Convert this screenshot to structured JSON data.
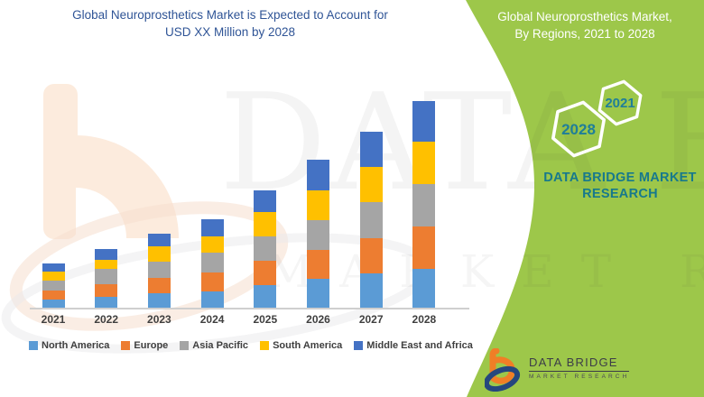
{
  "left_panel": {
    "title_line1": "Global Neuroprosthetics Market is Expected to Account for",
    "title_line2": "USD XX Million by 2028"
  },
  "right_panel": {
    "title_line1": "Global Neuroprosthetics Market,",
    "title_line2": "By Regions, 2021 to 2028",
    "hexagons": [
      {
        "label": "2028"
      },
      {
        "label": "2021"
      }
    ],
    "brand_line1": "DATA BRIDGE MARKET",
    "brand_line2": "RESEARCH",
    "colors": {
      "background": "#9DC74A",
      "hex_border": "#FFFFFF",
      "brand_text": "#17798C",
      "hex_label_text": "#1F7E99"
    }
  },
  "watermark": {
    "line1": "DATA BRIDGE",
    "line2": "MARKET RESEARCH"
  },
  "logo": {
    "name": "DATA BRIDGE",
    "subtitle": "MARKET RESEARCH",
    "colors": {
      "orange": "#F07E26",
      "navy": "#25477E",
      "text": "#3C3C48"
    }
  },
  "chart_data": {
    "type": "bar",
    "stacked": true,
    "title": "Global Neuroprosthetics Market, By Regions, 2021 to 2028",
    "xlabel": "",
    "ylabel": "",
    "unit_label": "USD XX Million",
    "value_note": "Actual values not disclosed (XX); series values are relative units estimated from bar heights",
    "grid": false,
    "legend_position": "bottom",
    "categories": [
      "2021",
      "2022",
      "2023",
      "2024",
      "2025",
      "2026",
      "2027",
      "2028"
    ],
    "series": [
      {
        "name": "North America",
        "color": "#5B9BD5",
        "values": [
          10,
          13,
          17,
          19,
          26,
          33,
          39,
          44
        ]
      },
      {
        "name": "Europe",
        "color": "#ED7D31",
        "values": [
          10,
          14,
          17,
          21,
          27,
          32,
          39,
          47
        ]
      },
      {
        "name": "Asia Pacific",
        "color": "#A5A5A5",
        "values": [
          11,
          17,
          18,
          22,
          27,
          33,
          40,
          47
        ]
      },
      {
        "name": "South America",
        "color": "#FFC000",
        "values": [
          10,
          10,
          17,
          18,
          27,
          33,
          39,
          47
        ]
      },
      {
        "name": "Middle East and Africa",
        "color": "#4472C4",
        "values": [
          9,
          12,
          14,
          19,
          24,
          34,
          39,
          45
        ]
      }
    ],
    "totals": [
      50,
      66,
      83,
      99,
      131,
      165,
      196,
      230
    ]
  }
}
